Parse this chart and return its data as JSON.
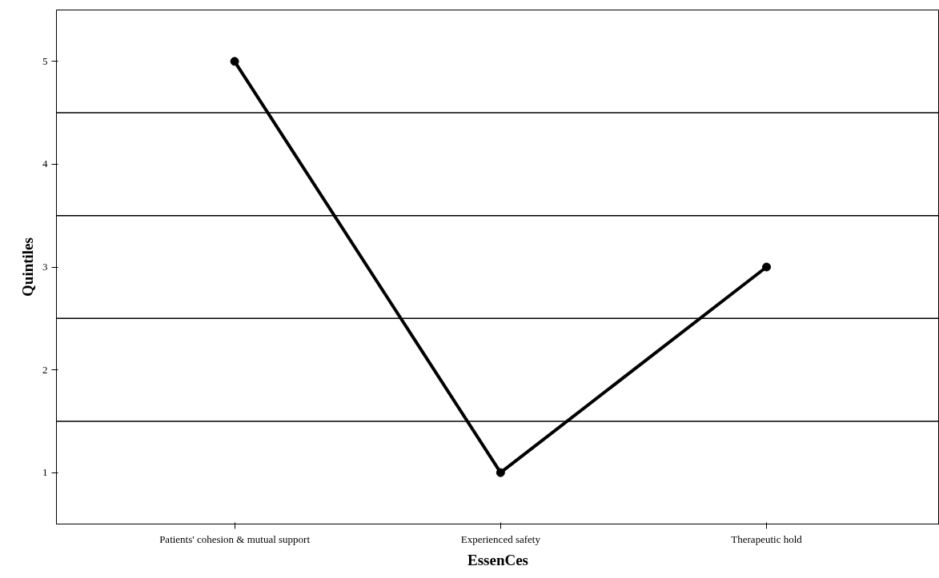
{
  "chart_data": {
    "type": "line",
    "xlabel": "EssenCes",
    "ylabel": "Quintiles",
    "categories": [
      "Patients' cohesion & mutual support",
      "Experienced safety",
      "Therapeutic hold"
    ],
    "series": [
      {
        "color": "#000000",
        "values": [
          5,
          1,
          3
        ]
      }
    ],
    "ylim": [
      0.5,
      5.5
    ],
    "yticks": [
      1,
      2,
      3,
      4,
      5
    ],
    "grid": false,
    "marker": "circle",
    "line_style": "solid",
    "ref_lines": [
      {
        "axis": "y",
        "value": 1.5,
        "color": "#000000"
      },
      {
        "axis": "y",
        "value": 2.5,
        "color": "#000000"
      },
      {
        "axis": "y",
        "value": 3.5,
        "color": "#000000"
      },
      {
        "axis": "y",
        "value": 4.5,
        "color": "#000000"
      }
    ]
  }
}
